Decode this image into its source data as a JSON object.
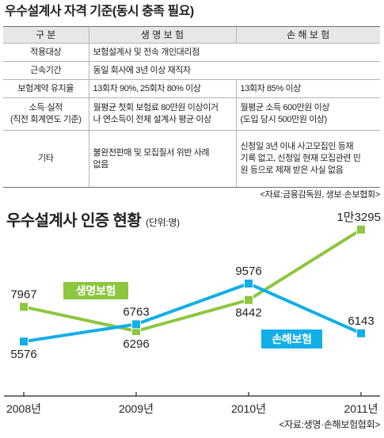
{
  "qualification": {
    "title": "우수설계사 자격 기준(동시 충족 필요)",
    "headers": [
      "구 분",
      "생 명 보 험",
      "손 해 보 험"
    ],
    "rows": [
      {
        "label": "적용대상",
        "common": "보험설계사 및 전속 개인대리점"
      },
      {
        "label": "근속기간",
        "common": "동일 회사에 3년 이상 재직자"
      },
      {
        "label": "보험계약 유지율",
        "life": "13회차 90%, 25회차 80% 이상",
        "nonlife": "13회차 85% 이상"
      },
      {
        "label": "소득·실적\n(직전 회계연도 기준)",
        "life": "월평균 첫회 보험료 80만원 이상이거\n나 연소득이 전체 설계사 평균 이상",
        "nonlife": "월평균 소득 600만원 이상\n(도입 당시 500만원 이상)"
      },
      {
        "label": "기타",
        "life": "불완전판매 및 모집질서 위반 사례\n없음",
        "nonlife": "신청일 3년 이내 사고모집인 등재\n기록 없고, 신청일 현재 모집관련 민\n원 등으로 제재 받은 사실 없음"
      }
    ],
    "source": "<자료:금융감독원, 생보·손보협회>"
  },
  "chart_data": {
    "type": "line",
    "title": "우수설계사 인증 현황",
    "unit": "(단위:명)",
    "categories": [
      "2008년",
      "2009년",
      "2010년",
      "2011년"
    ],
    "series": [
      {
        "name": "생명보험",
        "color": "#8dc63f",
        "values": [
          7967,
          6296,
          8442,
          13295
        ],
        "labels": [
          "7967",
          "6296",
          "8442",
          "1만3295"
        ]
      },
      {
        "name": "손해보험",
        "color": "#12aee8",
        "values": [
          5576,
          6763,
          9576,
          6143
        ],
        "labels": [
          "5576",
          "6763",
          "9576",
          "6143"
        ]
      }
    ],
    "ylim": [
      4000,
      14000
    ],
    "grid": false,
    "legend": "inline",
    "source": "<자료:생명·손해보험협회>"
  }
}
